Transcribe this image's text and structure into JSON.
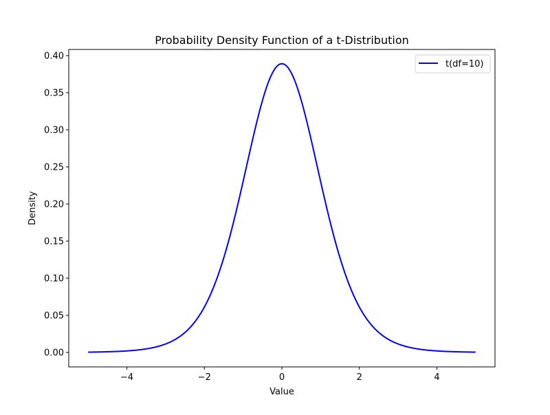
{
  "chart_data": {
    "type": "line",
    "title": "Probability Density Function of a t-Distribution",
    "xlabel": "Value",
    "ylabel": "Density",
    "xlim": [
      -5.5,
      5.5
    ],
    "ylim": [
      -0.0195,
      0.4083
    ],
    "x_ticks": [
      -4,
      -2,
      0,
      2,
      4
    ],
    "x_tick_labels": [
      "−4",
      "−2",
      "0",
      "2",
      "4"
    ],
    "y_ticks": [
      0.0,
      0.05,
      0.1,
      0.15,
      0.2,
      0.25,
      0.3,
      0.35,
      0.4
    ],
    "y_tick_labels": [
      "0.00",
      "0.05",
      "0.10",
      "0.15",
      "0.20",
      "0.25",
      "0.30",
      "0.35",
      "0.40"
    ],
    "grid": false,
    "legend_position": "upper right",
    "series": [
      {
        "name": "t(df=10)",
        "color": "#0000ff",
        "df": 10,
        "x": [
          -5,
          -4.5,
          -4,
          -3.5,
          -3,
          -2.5,
          -2,
          -1.5,
          -1,
          -0.5,
          0,
          0.5,
          1,
          1.5,
          2,
          2.5,
          3,
          3.5,
          4,
          4.5,
          5
        ],
        "values": [
          0.0004,
          0.0009,
          0.002,
          0.0046,
          0.0114,
          0.0269,
          0.0611,
          0.1274,
          0.2304,
          0.34,
          0.3891,
          0.34,
          0.2304,
          0.1274,
          0.0611,
          0.0269,
          0.0114,
          0.0046,
          0.002,
          0.0009,
          0.0004
        ]
      }
    ]
  },
  "legend": {
    "items": [
      {
        "label": "t(df=10)",
        "color": "#0000ff"
      }
    ]
  }
}
